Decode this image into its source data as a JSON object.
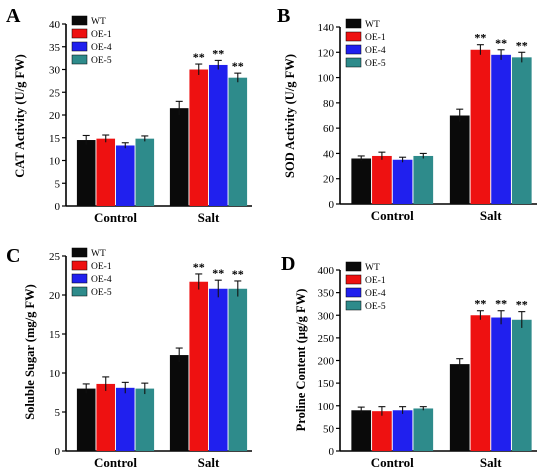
{
  "colors": {
    "WT": "#0a0a0a",
    "OE-1": "#ee1111",
    "OE-4": "#2020ee",
    "OE-5": "#2e8b8b"
  },
  "chart_data": [
    {
      "panel": "A",
      "type": "bar",
      "categories": [
        "Control",
        "Salt"
      ],
      "ylabel": "CAT Activity (U/g FW)",
      "ylim": [
        0,
        40
      ],
      "yticks": [
        0,
        5,
        10,
        15,
        20,
        25,
        30,
        35,
        40
      ],
      "legend": {
        "position": "top-left",
        "entries": [
          "WT",
          "OE-1",
          "OE-4",
          "OE-5"
        ]
      },
      "series": [
        {
          "name": "WT",
          "values": [
            14.5,
            21.5
          ],
          "errors": [
            1.0,
            1.5
          ],
          "sig": [
            "",
            ""
          ]
        },
        {
          "name": "OE-1",
          "values": [
            14.8,
            30.0
          ],
          "errors": [
            0.8,
            1.2
          ],
          "sig": [
            "",
            "**"
          ]
        },
        {
          "name": "OE-4",
          "values": [
            13.3,
            31.0
          ],
          "errors": [
            0.6,
            1.0
          ],
          "sig": [
            "",
            "**"
          ]
        },
        {
          "name": "OE-5",
          "values": [
            14.8,
            28.2
          ],
          "errors": [
            0.6,
            1.0
          ],
          "sig": [
            "",
            "**"
          ]
        }
      ]
    },
    {
      "panel": "B",
      "type": "bar",
      "categories": [
        "Control",
        "Salt"
      ],
      "ylabel": "SOD Activity (U/g FW)",
      "ylim": [
        0,
        140
      ],
      "yticks": [
        0,
        20,
        40,
        60,
        80,
        100,
        120,
        140
      ],
      "legend": {
        "position": "top-left",
        "entries": [
          "WT",
          "OE-1",
          "OE-4",
          "OE-5"
        ]
      },
      "series": [
        {
          "name": "WT",
          "values": [
            36,
            70
          ],
          "errors": [
            2,
            5
          ],
          "sig": [
            "",
            ""
          ]
        },
        {
          "name": "OE-1",
          "values": [
            38,
            122
          ],
          "errors": [
            3,
            4
          ],
          "sig": [
            "",
            "**"
          ]
        },
        {
          "name": "OE-4",
          "values": [
            35,
            118
          ],
          "errors": [
            2,
            4
          ],
          "sig": [
            "",
            "**"
          ]
        },
        {
          "name": "OE-5",
          "values": [
            38,
            116
          ],
          "errors": [
            2,
            4
          ],
          "sig": [
            "",
            "**"
          ]
        }
      ]
    },
    {
      "panel": "C",
      "type": "bar",
      "categories": [
        "Control",
        "Salt"
      ],
      "ylabel": "Soluble Sugar (mg/g FW)",
      "ylim": [
        0,
        25
      ],
      "yticks": [
        0,
        5,
        10,
        15,
        20,
        25
      ],
      "legend": {
        "position": "top-left",
        "entries": [
          "WT",
          "OE-1",
          "OE-4",
          "OE-5"
        ]
      },
      "series": [
        {
          "name": "WT",
          "values": [
            8.0,
            12.3
          ],
          "errors": [
            0.6,
            0.9
          ],
          "sig": [
            "",
            ""
          ]
        },
        {
          "name": "OE-1",
          "values": [
            8.6,
            21.7
          ],
          "errors": [
            0.9,
            1.0
          ],
          "sig": [
            "",
            "**"
          ]
        },
        {
          "name": "OE-4",
          "values": [
            8.1,
            20.8
          ],
          "errors": [
            0.7,
            1.1
          ],
          "sig": [
            "",
            "**"
          ]
        },
        {
          "name": "OE-5",
          "values": [
            8.0,
            20.8
          ],
          "errors": [
            0.7,
            1.0
          ],
          "sig": [
            "",
            "**"
          ]
        }
      ]
    },
    {
      "panel": "D",
      "type": "bar",
      "categories": [
        "Control",
        "Salt"
      ],
      "ylabel": "Proline Content (µg/g FW)",
      "ylim": [
        0,
        400
      ],
      "yticks": [
        0,
        50,
        100,
        150,
        200,
        250,
        300,
        350,
        400
      ],
      "legend": {
        "position": "top-left",
        "entries": [
          "WT",
          "OE-1",
          "OE-4",
          "OE-5"
        ]
      },
      "series": [
        {
          "name": "WT",
          "values": [
            90,
            192
          ],
          "errors": [
            7,
            12
          ],
          "sig": [
            "",
            ""
          ]
        },
        {
          "name": "OE-1",
          "values": [
            88,
            300
          ],
          "errors": [
            10,
            10
          ],
          "sig": [
            "",
            "**"
          ]
        },
        {
          "name": "OE-4",
          "values": [
            90,
            295
          ],
          "errors": [
            8,
            15
          ],
          "sig": [
            "",
            "**"
          ]
        },
        {
          "name": "OE-5",
          "values": [
            94,
            290
          ],
          "errors": [
            4,
            18
          ],
          "sig": [
            "",
            "**"
          ]
        }
      ]
    }
  ]
}
